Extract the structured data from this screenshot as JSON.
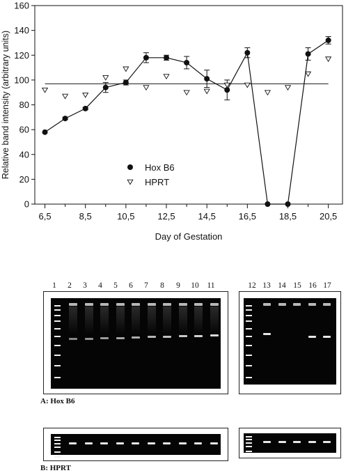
{
  "chart_data": {
    "type": "line",
    "xlabel": "Day of Gestation",
    "ylabel": "Relative band intensity (arbitrary units)",
    "xlim": [
      6.0,
      21.2
    ],
    "ylim": [
      0,
      160
    ],
    "xticks": [
      6.5,
      8.5,
      10.5,
      12.5,
      14.5,
      16.5,
      18.5,
      20.5
    ],
    "xtick_labels": [
      "6,5",
      "8,5",
      "10,5",
      "12,5",
      "14,5",
      "16,5",
      "18,5",
      "20,5"
    ],
    "yticks": [
      0,
      20,
      40,
      60,
      80,
      100,
      120,
      140,
      160
    ],
    "ytick_labels": [
      "0",
      "20",
      "40",
      "60",
      "80",
      "100",
      "120",
      "140",
      "160"
    ],
    "grid": false,
    "legend_position": "lower-left",
    "series": [
      {
        "name": "Hox B6",
        "marker": "filled-circle",
        "line": true,
        "x": [
          6.5,
          7.5,
          8.5,
          9.5,
          10.5,
          11.5,
          12.5,
          13.5,
          14.5,
          15.5,
          16.5,
          17.5,
          18.5,
          19.5,
          20.5
        ],
        "y": [
          58,
          69,
          77,
          94,
          98,
          118,
          118,
          114,
          101,
          92,
          122,
          0,
          0,
          121,
          132
        ],
        "err": [
          0,
          1,
          1,
          4,
          2,
          4,
          2,
          5,
          7,
          8,
          4,
          0,
          0,
          5,
          3
        ]
      },
      {
        "name": "HPRT",
        "marker": "open-triangle-down",
        "line": false,
        "x": [
          6.5,
          7.5,
          8.5,
          9.5,
          10.5,
          11.5,
          12.5,
          13.5,
          14.5,
          15.5,
          16.5,
          17.5,
          18.5,
          19.5,
          20.5
        ],
        "y": [
          92,
          87,
          88,
          102,
          109,
          94,
          103,
          90,
          91,
          96,
          96,
          90,
          94,
          105,
          117
        ]
      }
    ],
    "reference_line": {
      "y": 97,
      "x_from": 6.5,
      "x_to": 20.5
    }
  },
  "gels": {
    "panel_a_label": "A: Hox B6",
    "panel_b_label": "B: HPRT",
    "left_lanes": [
      "1",
      "2",
      "3",
      "4",
      "5",
      "6",
      "7",
      "8",
      "9",
      "10",
      "11"
    ],
    "right_lanes": [
      "12",
      "13",
      "14",
      "15",
      "16",
      "17"
    ]
  },
  "colors": {
    "line": "#111111",
    "gel_background": "#050505",
    "band": "#e6e6e6"
  }
}
